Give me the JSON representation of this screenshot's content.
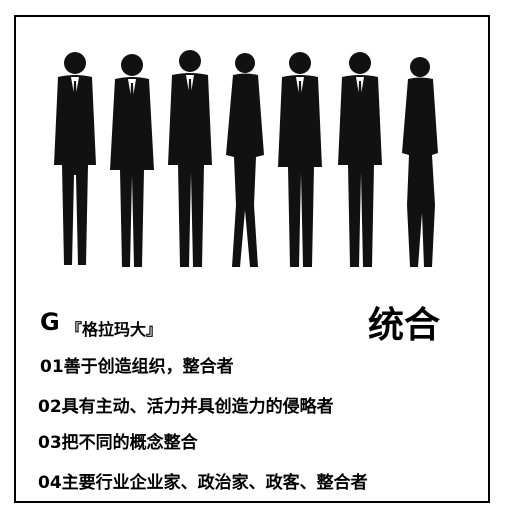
{
  "heading": {
    "letter": "G",
    "name": "『格拉玛大』",
    "keyword": "统合"
  },
  "points": [
    "01善于创造组织，整合者",
    "02具有主动、活力并具创造力的侵略者",
    "03把不同的概念整合",
    "04主要行业企业家、政治家、政客、整合者"
  ],
  "colors": {
    "ink": "#000000",
    "background": "#ffffff"
  },
  "icons": [
    "business-people-silhouettes"
  ]
}
